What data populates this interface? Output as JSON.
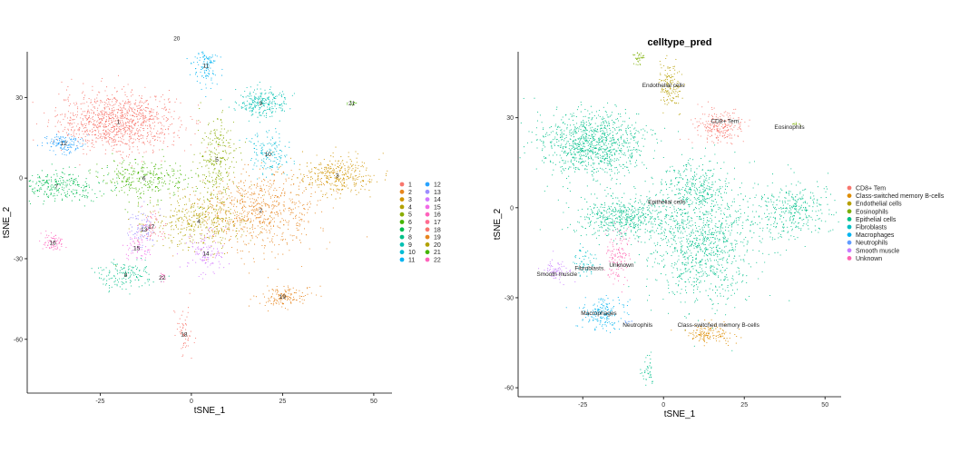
{
  "chart_data": [
    {
      "type": "scatter",
      "title": "",
      "xlabel": "tSNE_1",
      "ylabel": "tSNE_2",
      "xlim": [
        -45,
        55
      ],
      "ylim": [
        -80,
        47
      ],
      "xticks": [
        -25,
        0,
        25,
        50
      ],
      "yticks": [
        -60,
        -30,
        0,
        30
      ],
      "ytick_labels": [
        "-60",
        "-30",
        "0",
        "30"
      ],
      "legend_position": "right",
      "legend_columns": 2,
      "clusters": [
        {
          "name": "1",
          "color": "#F8766D",
          "cx": -20,
          "cy": 21,
          "sx": 9,
          "sy": 6,
          "n": 1100
        },
        {
          "name": "2",
          "color": "#E7851E",
          "cx": 19,
          "cy": -12,
          "sx": 9,
          "sy": 8,
          "n": 700
        },
        {
          "name": "3",
          "color": "#D09400",
          "cx": 40,
          "cy": 1,
          "sx": 6,
          "sy": 4,
          "n": 340
        },
        {
          "name": "4",
          "color": "#B2A100",
          "cx": 2,
          "cy": -16,
          "sx": 8,
          "sy": 6,
          "n": 420
        },
        {
          "name": "5",
          "color": "#89AC00",
          "cx": 7,
          "cy": 7,
          "sx": 3,
          "sy": 8,
          "n": 260
        },
        {
          "name": "6",
          "color": "#45B500",
          "cx": -13,
          "cy": 0,
          "sx": 7,
          "sy": 4,
          "n": 300
        },
        {
          "name": "7",
          "color": "#00BC51",
          "cx": -37,
          "cy": -3,
          "sx": 8,
          "sy": 3,
          "n": 300
        },
        {
          "name": "8",
          "color": "#00C087",
          "cx": -18,
          "cy": -36,
          "sx": 4,
          "sy": 3,
          "n": 150
        },
        {
          "name": "9",
          "color": "#00C0B2",
          "cx": 19,
          "cy": 28,
          "sx": 4,
          "sy": 3,
          "n": 260
        },
        {
          "name": "10",
          "color": "#00BCD6",
          "cx": 21,
          "cy": 9,
          "sx": 3,
          "sy": 4,
          "n": 150
        },
        {
          "name": "11",
          "color": "#00B3F2",
          "cx": 4,
          "cy": 42,
          "sx": 2,
          "sy": 4,
          "n": 120
        },
        {
          "name": "12",
          "color": "#29A3FF",
          "cx": -35,
          "cy": 13,
          "sx": 3,
          "sy": 2,
          "n": 140
        },
        {
          "name": "13",
          "color": "#9C8DFF",
          "cx": -13,
          "cy": -19,
          "sx": 2,
          "sy": 4,
          "n": 90
        },
        {
          "name": "14",
          "color": "#D277FF",
          "cx": 4,
          "cy": -28,
          "sx": 3,
          "sy": 4,
          "n": 120
        },
        {
          "name": "15",
          "color": "#F269E7",
          "cx": -15,
          "cy": -26,
          "sx": 2,
          "sy": 3,
          "n": 60
        },
        {
          "name": "16",
          "color": "#FF62BC",
          "cx": -38,
          "cy": -24,
          "sx": 2,
          "sy": 2,
          "n": 70
        },
        {
          "name": "17",
          "color": "#FF6C91",
          "cx": -11,
          "cy": -18,
          "sx": 2,
          "sy": 3,
          "n": 60
        },
        {
          "name": "18",
          "color": "#F8766D",
          "cx": -2,
          "cy": -58,
          "sx": 1.5,
          "sy": 5,
          "n": 60
        },
        {
          "name": "19",
          "color": "#E7851E",
          "cx": 25,
          "cy": -44,
          "sx": 4,
          "sy": 2,
          "n": 150
        },
        {
          "name": "20",
          "color": "#B2A100",
          "cx": -4,
          "cy": 52,
          "sx": 1,
          "sy": 2,
          "n": 30
        },
        {
          "name": "21",
          "color": "#45B500",
          "cx": 44,
          "cy": 28,
          "sx": 1,
          "sy": 0.5,
          "n": 12
        },
        {
          "name": "22",
          "color": "#FF62BC",
          "cx": -8,
          "cy": -37,
          "sx": 0.6,
          "sy": 1,
          "n": 14
        }
      ],
      "legend": [
        {
          "label": "1",
          "color": "#F8766D"
        },
        {
          "label": "2",
          "color": "#E7851E"
        },
        {
          "label": "3",
          "color": "#D09400"
        },
        {
          "label": "4",
          "color": "#B2A100"
        },
        {
          "label": "5",
          "color": "#89AC00"
        },
        {
          "label": "6",
          "color": "#45B500"
        },
        {
          "label": "7",
          "color": "#00BC51"
        },
        {
          "label": "8",
          "color": "#00C087"
        },
        {
          "label": "9",
          "color": "#00C0B2"
        },
        {
          "label": "10",
          "color": "#00BCD6"
        },
        {
          "label": "11",
          "color": "#00B3F2"
        },
        {
          "label": "12",
          "color": "#29A3FF"
        },
        {
          "label": "13",
          "color": "#9C8DFF"
        },
        {
          "label": "14",
          "color": "#D277FF"
        },
        {
          "label": "15",
          "color": "#F269E7"
        },
        {
          "label": "16",
          "color": "#FF62BC"
        },
        {
          "label": "17",
          "color": "#FF6C91"
        },
        {
          "label": "18",
          "color": "#F8766D"
        },
        {
          "label": "19",
          "color": "#E7851E"
        },
        {
          "label": "20",
          "color": "#B2A100"
        },
        {
          "label": "21",
          "color": "#45B500"
        },
        {
          "label": "22",
          "color": "#FF62BC"
        }
      ]
    },
    {
      "type": "scatter",
      "title": "celltype_pred",
      "xlabel": "tSNE_1",
      "ylabel": "tSNE_2",
      "xlim": [
        -45,
        55
      ],
      "ylim": [
        -63,
        52
      ],
      "xticks": [
        -25,
        0,
        25,
        50
      ],
      "yticks": [
        -60,
        -30,
        0,
        30
      ],
      "ytick_labels": [
        "-60",
        "-30",
        "0",
        "30"
      ],
      "legend_position": "right",
      "legend_columns": 1,
      "clusters": [
        {
          "name": "Epithelial cells",
          "color": "#00C08B",
          "cx": -22,
          "cy": 21,
          "sx": 9,
          "sy": 6,
          "n": 1000
        },
        {
          "name": "Epithelial cells",
          "color": "#00C08B",
          "cx": -12,
          "cy": -3,
          "sx": 9,
          "sy": 4,
          "n": 550
        },
        {
          "name": "Epithelial cells",
          "color": "#00C08B",
          "cx": 13,
          "cy": -12,
          "sx": 9,
          "sy": 11,
          "n": 1000
        },
        {
          "name": "Epithelial cells",
          "color": "#00C08B",
          "cx": 9,
          "cy": 7,
          "sx": 6,
          "sy": 5,
          "n": 300
        },
        {
          "name": "Epithelial cells",
          "color": "#00C08B",
          "cx": 40,
          "cy": -1,
          "sx": 6,
          "sy": 5,
          "n": 340
        },
        {
          "name": "Epithelial cells",
          "color": "#00C08B",
          "cx": -5,
          "cy": -55,
          "sx": 1,
          "sy": 3,
          "n": 40
        },
        {
          "name": "CD8+ Tem",
          "color": "#F8766D",
          "cx": 17,
          "cy": 27,
          "sx": 4,
          "sy": 3,
          "n": 230
        },
        {
          "name": "Eosinophils",
          "color": "#7CAE00",
          "cx": 41,
          "cy": 28,
          "sx": 1,
          "sy": 0.4,
          "n": 10
        },
        {
          "name": "Eosinophils",
          "color": "#7CAE00",
          "cx": -8,
          "cy": 50,
          "sx": 1,
          "sy": 1.5,
          "n": 35
        },
        {
          "name": "Endothelial cells",
          "color": "#B79F00",
          "cx": 2,
          "cy": 41,
          "sx": 2,
          "sy": 4,
          "n": 140
        },
        {
          "name": "Class-switched memory B-cells",
          "color": "#DE8C00",
          "cx": 14,
          "cy": -42,
          "sx": 4,
          "sy": 2,
          "n": 150
        },
        {
          "name": "Fibroblasts",
          "color": "#00BFC4",
          "cx": -24,
          "cy": -18,
          "sx": 2,
          "sy": 3,
          "n": 60
        },
        {
          "name": "Macrophages",
          "color": "#00B4F0",
          "cx": -19,
          "cy": -35,
          "sx": 4,
          "sy": 3,
          "n": 180
        },
        {
          "name": "Neutrophils",
          "color": "#619CFF",
          "cx": -11,
          "cy": -38,
          "sx": 1,
          "sy": 0.5,
          "n": 10
        },
        {
          "name": "Smooth muscle",
          "color": "#C77CFF",
          "cx": -33,
          "cy": -21,
          "sx": 2,
          "sy": 2,
          "n": 70
        },
        {
          "name": "Unknown",
          "color": "#FF64B0",
          "cx": -14,
          "cy": -16,
          "sx": 2,
          "sy": 5,
          "n": 130
        }
      ],
      "cluster_labels": [
        {
          "text": "Endothelial cells",
          "x": 0,
          "y": 41
        },
        {
          "text": "CD8+ Tem",
          "x": 19,
          "y": 29
        },
        {
          "text": "Eosinophils",
          "x": 39,
          "y": 27
        },
        {
          "text": "Epithelial cells",
          "x": 1,
          "y": 2
        },
        {
          "text": "Smooth muscle",
          "x": -33,
          "y": -22
        },
        {
          "text": "Fibroblasts",
          "x": -23,
          "y": -20
        },
        {
          "text": "Unknown",
          "x": -13,
          "y": -19
        },
        {
          "text": "Macrophages",
          "x": -20,
          "y": -35
        },
        {
          "text": "Neutrophils",
          "x": -8,
          "y": -39
        },
        {
          "text": "Class-switched memory B-cells",
          "x": 17,
          "y": -39
        }
      ],
      "legend": [
        {
          "label": "CD8+ Tem",
          "color": "#F8766D"
        },
        {
          "label": "Class-switched memory B-cells",
          "color": "#DE8C00"
        },
        {
          "label": "Endothelial cells",
          "color": "#B79F00"
        },
        {
          "label": "Eosinophils",
          "color": "#7CAE00"
        },
        {
          "label": "Epithelial cells",
          "color": "#00C08B"
        },
        {
          "label": "Fibroblasts",
          "color": "#00BFC4"
        },
        {
          "label": "Macrophages",
          "color": "#00B4F0"
        },
        {
          "label": "Neutrophils",
          "color": "#619CFF"
        },
        {
          "label": "Smooth muscle",
          "color": "#C77CFF"
        },
        {
          "label": "Unknown",
          "color": "#FF64B0"
        }
      ]
    }
  ]
}
